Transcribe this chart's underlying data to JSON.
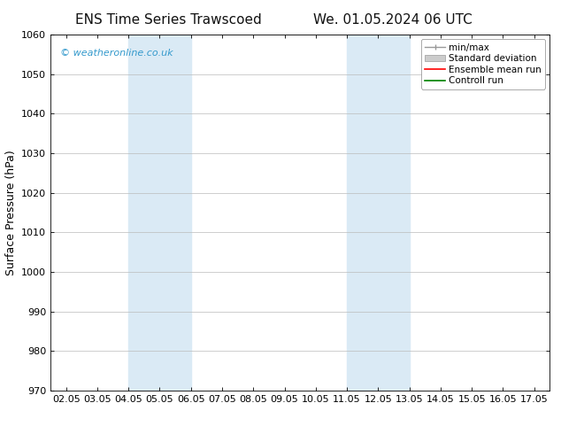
{
  "title_left": "ENS Time Series Trawscoed",
  "title_right": "We. 01.05.2024 06 UTC",
  "ylabel": "Surface Pressure (hPa)",
  "xlim": [
    1.5,
    17.5
  ],
  "ylim": [
    970,
    1060
  ],
  "yticks": [
    970,
    980,
    990,
    1000,
    1010,
    1020,
    1030,
    1040,
    1050,
    1060
  ],
  "xtick_labels": [
    "02.05",
    "03.05",
    "04.05",
    "05.05",
    "06.05",
    "07.05",
    "08.05",
    "09.05",
    "10.05",
    "11.05",
    "12.05",
    "13.05",
    "14.05",
    "15.05",
    "16.05",
    "17.05"
  ],
  "xtick_positions": [
    2.0,
    3.0,
    4.0,
    5.0,
    6.0,
    7.0,
    8.0,
    9.0,
    10.0,
    11.0,
    12.0,
    13.0,
    14.0,
    15.0,
    16.0,
    17.0
  ],
  "shaded_regions": [
    {
      "xmin": 4.0,
      "xmax": 6.0,
      "color": "#daeaf5"
    },
    {
      "xmin": 11.0,
      "xmax": 13.0,
      "color": "#daeaf5"
    }
  ],
  "watermark": "© weatheronline.co.uk",
  "watermark_color": "#3399cc",
  "bg_color": "#ffffff",
  "grid_color": "#bbbbbb",
  "title_fontsize": 11,
  "ylabel_fontsize": 9,
  "tick_fontsize": 8,
  "legend_fontsize": 7.5,
  "watermark_fontsize": 8
}
